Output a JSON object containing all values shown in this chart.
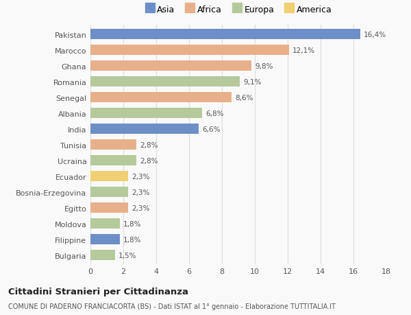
{
  "categories": [
    "Pakistan",
    "Marocco",
    "Ghana",
    "Romania",
    "Senegal",
    "Albania",
    "India",
    "Tunisia",
    "Ucraina",
    "Ecuador",
    "Bosnia-Erzegovina",
    "Egitto",
    "Moldova",
    "Filippine",
    "Bulgaria"
  ],
  "values": [
    16.4,
    12.1,
    9.8,
    9.1,
    8.6,
    6.8,
    6.6,
    2.8,
    2.8,
    2.3,
    2.3,
    2.3,
    1.8,
    1.8,
    1.5
  ],
  "labels": [
    "16,4%",
    "12,1%",
    "9,8%",
    "9,1%",
    "8,6%",
    "6,8%",
    "6,6%",
    "2,8%",
    "2,8%",
    "2,3%",
    "2,3%",
    "2,3%",
    "1,8%",
    "1,8%",
    "1,5%"
  ],
  "continents": [
    "Asia",
    "Africa",
    "Africa",
    "Europa",
    "Africa",
    "Europa",
    "Asia",
    "Africa",
    "Europa",
    "America",
    "Europa",
    "Africa",
    "Europa",
    "Asia",
    "Europa"
  ],
  "colors": {
    "Asia": "#6d8fc7",
    "Africa": "#e8b08a",
    "Europa": "#b5c99a",
    "America": "#f0d070"
  },
  "legend_labels": [
    "Asia",
    "Africa",
    "Europa",
    "America"
  ],
  "legend_colors": [
    "#6d8fc7",
    "#e8b08a",
    "#b5c99a",
    "#f0d070"
  ],
  "title": "Cittadini Stranieri per Cittadinanza",
  "subtitle": "COMUNE DI PADERNO FRANCIACORTA (BS) - Dati ISTAT al 1° gennaio - Elaborazione TUTTITALIA.IT",
  "xlim": [
    0,
    18
  ],
  "xticks": [
    0,
    2,
    4,
    6,
    8,
    10,
    12,
    14,
    16,
    18
  ],
  "background_color": "#f9f9f9",
  "grid_color": "#dddddd",
  "bar_height": 0.62
}
